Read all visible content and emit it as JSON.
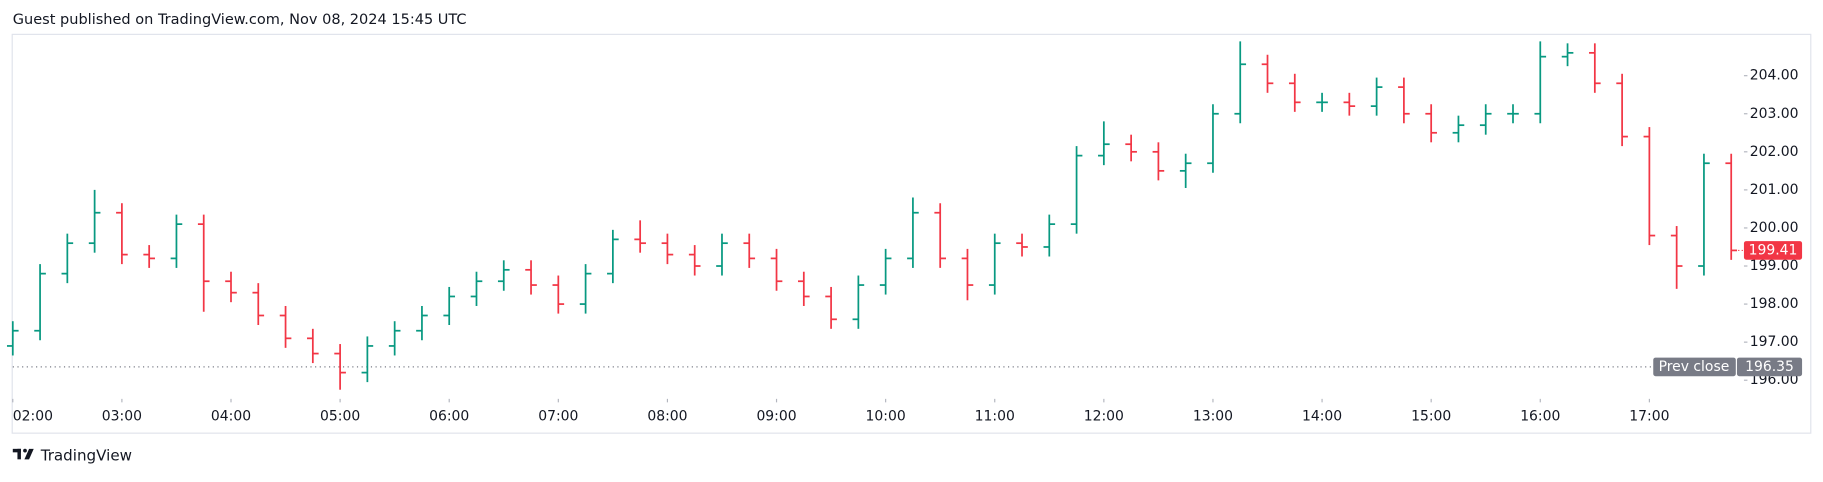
{
  "header": {
    "title": "Guest published on TradingView.com, Nov 08, 2024 15:45 UTC"
  },
  "footer": {
    "brand": "TradingView"
  },
  "chart_data": {
    "type": "ohlc",
    "up_color": "#089981",
    "down_color": "#f23645",
    "x": [
      "02:00",
      "02:15",
      "02:30",
      "02:45",
      "03:00",
      "03:15",
      "03:30",
      "03:45",
      "04:00",
      "04:15",
      "04:30",
      "04:45",
      "05:00",
      "05:15",
      "05:30",
      "05:45",
      "06:00",
      "06:15",
      "06:30",
      "06:45",
      "07:00",
      "07:15",
      "07:30",
      "07:45",
      "08:00",
      "08:15",
      "08:30",
      "08:45",
      "09:00",
      "09:15",
      "09:30",
      "09:45",
      "10:00",
      "10:15",
      "10:30",
      "10:45",
      "11:00",
      "11:15",
      "11:30",
      "11:45",
      "12:00",
      "12:15",
      "12:30",
      "12:45",
      "13:00",
      "13:15",
      "13:30",
      "13:45",
      "14:00",
      "14:15",
      "14:30",
      "14:45",
      "15:00",
      "15:15",
      "15:30",
      "15:45",
      "16:00",
      "16:15",
      "16:30",
      "16:45",
      "17:00",
      "17:15",
      "17:30",
      "17:45"
    ],
    "open": [
      196.9,
      197.3,
      198.8,
      199.6,
      200.4,
      199.3,
      199.2,
      200.1,
      198.6,
      198.3,
      197.7,
      197.1,
      196.7,
      196.2,
      196.9,
      197.3,
      197.7,
      198.2,
      198.6,
      198.9,
      198.5,
      198.0,
      198.8,
      199.7,
      199.6,
      199.3,
      199.0,
      199.6,
      199.2,
      198.6,
      198.2,
      197.6,
      198.5,
      199.2,
      200.4,
      199.2,
      198.5,
      199.6,
      199.5,
      200.1,
      201.9,
      202.2,
      202.0,
      201.5,
      201.7,
      203.0,
      204.3,
      203.8,
      203.3,
      203.3,
      203.2,
      203.7,
      203.0,
      202.5,
      202.7,
      203.0,
      203.0,
      204.5,
      204.6,
      203.8,
      202.4,
      199.8,
      199.0,
      201.7
    ],
    "high": [
      197.55,
      199.05,
      199.85,
      201.0,
      200.65,
      199.55,
      200.35,
      200.35,
      198.85,
      198.55,
      197.95,
      197.35,
      196.95,
      197.15,
      197.55,
      197.95,
      198.45,
      198.85,
      199.15,
      199.15,
      198.75,
      199.05,
      199.95,
      200.2,
      199.85,
      199.55,
      199.85,
      199.85,
      199.45,
      198.85,
      198.45,
      198.75,
      199.45,
      200.8,
      200.65,
      199.45,
      199.85,
      199.85,
      200.35,
      202.15,
      202.8,
      202.45,
      202.25,
      201.95,
      203.25,
      204.9,
      204.55,
      204.05,
      203.55,
      203.55,
      203.95,
      203.95,
      203.25,
      202.95,
      203.25,
      203.25,
      204.9,
      204.85,
      204.85,
      204.05,
      202.65,
      200.05,
      201.95,
      201.95
    ],
    "low": [
      196.65,
      197.05,
      198.55,
      199.35,
      199.05,
      198.95,
      198.95,
      197.8,
      198.05,
      197.45,
      196.85,
      196.45,
      195.75,
      195.95,
      196.65,
      197.05,
      197.45,
      197.95,
      198.35,
      198.25,
      197.75,
      197.75,
      198.55,
      199.35,
      199.05,
      198.75,
      198.75,
      198.95,
      198.35,
      197.95,
      197.35,
      197.35,
      198.25,
      198.95,
      198.95,
      198.1,
      198.25,
      199.25,
      199.25,
      199.85,
      201.65,
      201.75,
      201.25,
      201.05,
      201.45,
      202.75,
      203.55,
      203.05,
      203.05,
      202.95,
      202.95,
      202.75,
      202.25,
      202.25,
      202.45,
      202.75,
      202.75,
      204.25,
      203.55,
      202.15,
      199.55,
      198.4,
      198.75,
      199.16
    ],
    "close": [
      197.3,
      198.8,
      199.6,
      200.4,
      199.3,
      199.2,
      200.1,
      198.6,
      198.3,
      197.7,
      197.1,
      196.7,
      196.2,
      196.9,
      197.3,
      197.7,
      198.2,
      198.6,
      198.9,
      198.5,
      198.0,
      198.8,
      199.7,
      199.6,
      199.3,
      199.0,
      199.6,
      199.2,
      198.6,
      198.2,
      197.6,
      198.5,
      199.2,
      200.4,
      199.2,
      198.5,
      199.6,
      199.5,
      200.1,
      201.9,
      202.2,
      202.0,
      201.5,
      201.7,
      203.0,
      204.3,
      203.8,
      203.3,
      203.3,
      203.2,
      203.7,
      203.0,
      202.5,
      202.7,
      203.0,
      203.0,
      204.5,
      204.6,
      203.8,
      202.4,
      199.8,
      199.0,
      201.7,
      199.41
    ],
    "xlim": [
      "02:00",
      "17:52"
    ],
    "xticks": [
      "02:00",
      "03:00",
      "04:00",
      "05:00",
      "06:00",
      "07:00",
      "08:00",
      "09:00",
      "10:00",
      "11:00",
      "12:00",
      "13:00",
      "14:00",
      "15:00",
      "16:00",
      "17:00"
    ],
    "ylim": [
      195.51,
      205.07
    ],
    "yticks": [
      {
        "value": 196,
        "label": "196.00"
      },
      {
        "value": 197,
        "label": "197.00"
      },
      {
        "value": 198,
        "label": "198.00"
      },
      {
        "value": 199,
        "label": "199.00"
      },
      {
        "value": 200,
        "label": "200.00"
      },
      {
        "value": 201,
        "label": "201.00"
      },
      {
        "value": 202,
        "label": "202.00"
      },
      {
        "value": 203,
        "label": "203.00"
      },
      {
        "value": 204,
        "label": "204.00"
      }
    ],
    "prev_close": {
      "label": "Prev close",
      "value": 196.35
    },
    "prev_close_color": "#787b86"
  }
}
